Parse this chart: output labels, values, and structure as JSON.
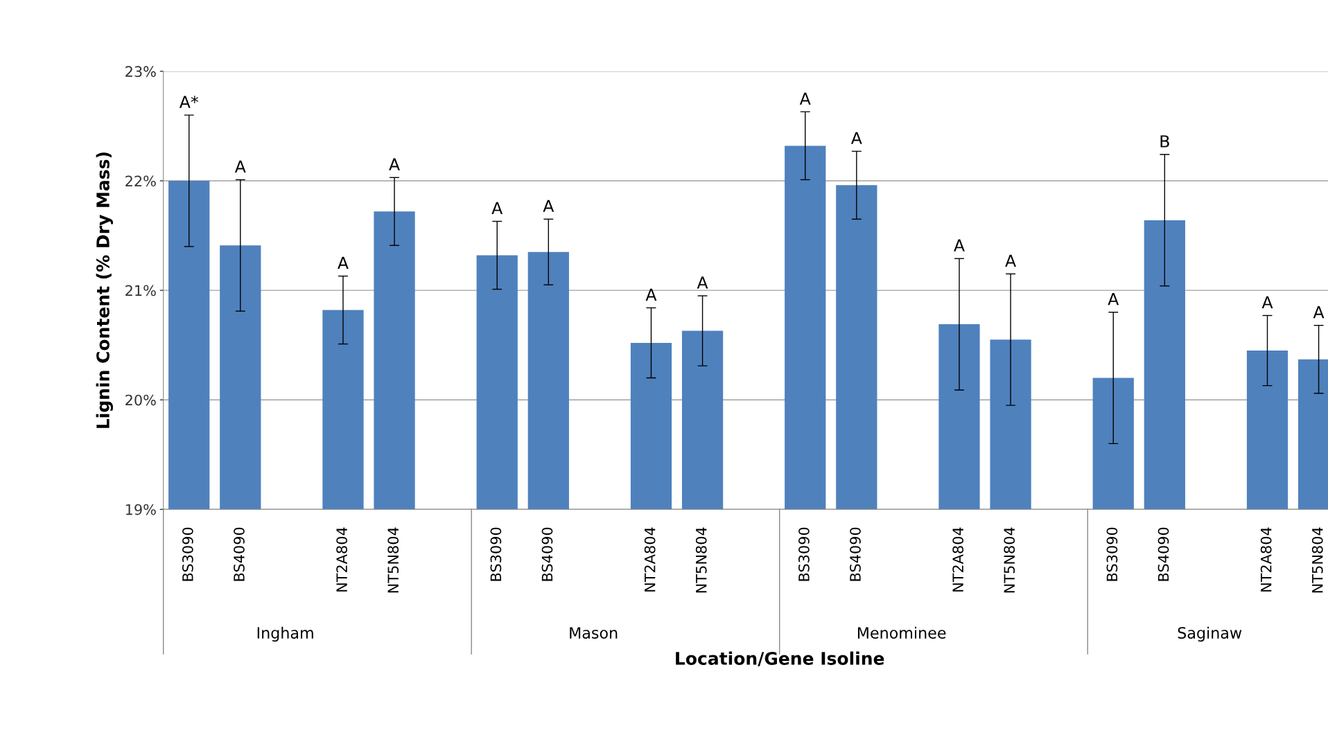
{
  "chart_data": {
    "type": "bar",
    "xlabel": "Location/Gene Isoline",
    "ylabel": "Lignin Content (% Dry Mass)",
    "categories": [
      "BS3090",
      "BS4090",
      null,
      "NT2A804",
      "NT5N804",
      null,
      "BS3090",
      "BS4090",
      null,
      "NT2A804",
      "NT5N804",
      null,
      "BS3090",
      "BS4090",
      null,
      "NT2A804",
      "NT5N804",
      null,
      "BS3090",
      "BS4090",
      null,
      "NT2A804",
      "NT5N804",
      null
    ],
    "values": [
      22.0,
      21.41,
      null,
      20.82,
      21.72,
      null,
      21.32,
      21.35,
      null,
      20.52,
      20.63,
      null,
      22.32,
      21.96,
      null,
      20.69,
      20.55,
      null,
      20.2,
      21.64,
      null,
      20.45,
      20.37,
      null
    ],
    "errors": [
      0.6,
      0.6,
      null,
      0.31,
      0.31,
      null,
      0.31,
      0.3,
      null,
      0.32,
      0.32,
      null,
      0.31,
      0.31,
      null,
      0.6,
      0.6,
      null,
      0.6,
      0.6,
      null,
      0.32,
      0.31,
      null
    ],
    "color": "#4f81bd",
    "annotations": [
      "A*",
      "A",
      "A",
      "A",
      "A",
      "A",
      "A",
      "A",
      "A",
      "A",
      "A",
      "A",
      "A",
      "B",
      "A",
      "A",
      "Ingham",
      "Mason",
      "Menominee",
      "Saginaw"
    ],
    "ylim": [
      19,
      23
    ],
    "yticks": [
      {
        "value": 19,
        "label": "19%"
      },
      {
        "value": 20,
        "label": "20%"
      },
      {
        "value": 21,
        "label": "21%"
      },
      {
        "value": 22,
        "label": "22%"
      },
      {
        "value": 23,
        "label": "23%"
      }
    ],
    "grid": "y"
  }
}
